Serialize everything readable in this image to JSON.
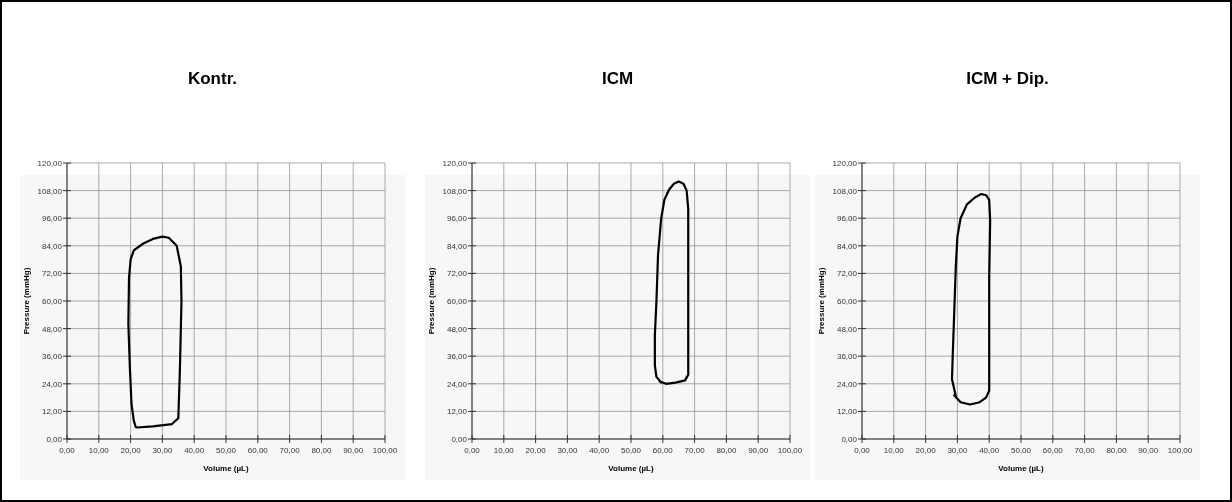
{
  "chart_data": [
    {
      "type": "line",
      "title": "Kontr.",
      "xlabel": "Volume (µL)",
      "ylabel": "Pressure (mmHg)",
      "xlim": [
        0,
        100
      ],
      "ylim": [
        0,
        120
      ],
      "grid": true,
      "xticks": [
        {
          "value": 0,
          "label": "0,00"
        },
        {
          "value": 10,
          "label": "10,00"
        },
        {
          "value": 20,
          "label": "20,00"
        },
        {
          "value": 30,
          "label": "30,00"
        },
        {
          "value": 40,
          "label": "40,00"
        },
        {
          "value": 50,
          "label": "50,00"
        },
        {
          "value": 60,
          "label": "60,00"
        },
        {
          "value": 70,
          "label": "70,00"
        },
        {
          "value": 80,
          "label": "80,00"
        },
        {
          "value": 90,
          "label": "90,00"
        },
        {
          "value": 100,
          "label": "100,00"
        }
      ],
      "yticks": [
        {
          "value": 0,
          "label": "0,00"
        },
        {
          "value": 12,
          "label": "12,00"
        },
        {
          "value": 24,
          "label": "24,00"
        },
        {
          "value": 36,
          "label": "36,00"
        },
        {
          "value": 48,
          "label": "48,00"
        },
        {
          "value": 60,
          "label": "60,00"
        },
        {
          "value": 72,
          "label": "72,00"
        },
        {
          "value": 84,
          "label": "84,00"
        },
        {
          "value": 96,
          "label": "96,00"
        },
        {
          "value": 108,
          "label": "108,00"
        },
        {
          "value": 120,
          "label": "120,00"
        }
      ],
      "series": [
        {
          "color": "#000000",
          "x": [
            22,
            27,
            33,
            35,
            35.5,
            36,
            35.8,
            34.5,
            32,
            30,
            27,
            24,
            21,
            20,
            19.5,
            19.3,
            19.8,
            20.3,
            21,
            21.6
          ],
          "values": [
            5,
            5.5,
            6.5,
            9,
            30,
            60,
            75,
            84,
            87.5,
            88,
            87,
            85,
            82,
            78,
            70,
            50,
            30,
            15,
            8,
            5.2
          ]
        }
      ]
    },
    {
      "type": "line",
      "title": "ICM",
      "xlabel": "Volume (µL)",
      "ylabel": "Pressure (mmHg)",
      "xlim": [
        0,
        100
      ],
      "ylim": [
        0,
        120
      ],
      "grid": true,
      "xticks": [
        {
          "value": 0,
          "label": "0,00"
        },
        {
          "value": 10,
          "label": "10,00"
        },
        {
          "value": 20,
          "label": "20,00"
        },
        {
          "value": 30,
          "label": "30,00"
        },
        {
          "value": 40,
          "label": "40,00"
        },
        {
          "value": 50,
          "label": "50,00"
        },
        {
          "value": 60,
          "label": "60,00"
        },
        {
          "value": 70,
          "label": "70,00"
        },
        {
          "value": 80,
          "label": "80,00"
        },
        {
          "value": 90,
          "label": "90,00"
        },
        {
          "value": 100,
          "label": "100,00"
        }
      ],
      "yticks": [
        {
          "value": 0,
          "label": "0,00"
        },
        {
          "value": 12,
          "label": "12,00"
        },
        {
          "value": 24,
          "label": "24,00"
        },
        {
          "value": 36,
          "label": "36,00"
        },
        {
          "value": 48,
          "label": "48,00"
        },
        {
          "value": 60,
          "label": "60,00"
        },
        {
          "value": 72,
          "label": "72,00"
        },
        {
          "value": 84,
          "label": "84,00"
        },
        {
          "value": 96,
          "label": "96,00"
        },
        {
          "value": 108,
          "label": "108,00"
        },
        {
          "value": 120,
          "label": "120,00"
        }
      ],
      "series": [
        {
          "color": "#000000",
          "x": [
            59,
            61,
            64,
            67,
            68,
            68,
            68,
            68,
            67.5,
            66.5,
            65,
            63.5,
            62,
            60.5,
            59.5,
            58.5,
            58,
            57.5,
            57.5,
            58,
            59.5
          ],
          "values": [
            25,
            24,
            24.5,
            25.5,
            28,
            50,
            80,
            100,
            108,
            111,
            112,
            111,
            108.5,
            104,
            96,
            80,
            60,
            45,
            32,
            27,
            24.6
          ]
        }
      ]
    },
    {
      "type": "line",
      "title": "ICM + Dip.",
      "xlabel": "Volume (µL)",
      "ylabel": "Pressure (mmHg)",
      "xlim": [
        0,
        100
      ],
      "ylim": [
        0,
        120
      ],
      "grid": true,
      "xticks": [
        {
          "value": 0,
          "label": "0,00"
        },
        {
          "value": 10,
          "label": "10,00"
        },
        {
          "value": 20,
          "label": "20,00"
        },
        {
          "value": 30,
          "label": "30,00"
        },
        {
          "value": 40,
          "label": "40,00"
        },
        {
          "value": 50,
          "label": "50,00"
        },
        {
          "value": 60,
          "label": "60,00"
        },
        {
          "value": 70,
          "label": "70,00"
        },
        {
          "value": 80,
          "label": "80,00"
        },
        {
          "value": 90,
          "label": "90,00"
        },
        {
          "value": 100,
          "label": "100,00"
        }
      ],
      "yticks": [
        {
          "value": 0,
          "label": "0,00"
        },
        {
          "value": 12,
          "label": "12,00"
        },
        {
          "value": 24,
          "label": "24,00"
        },
        {
          "value": 36,
          "label": "36,00"
        },
        {
          "value": 48,
          "label": "48,00"
        },
        {
          "value": 60,
          "label": "60,00"
        },
        {
          "value": 72,
          "label": "72,00"
        },
        {
          "value": 84,
          "label": "84,00"
        },
        {
          "value": 96,
          "label": "96,00"
        },
        {
          "value": 108,
          "label": "108,00"
        },
        {
          "value": 120,
          "label": "120,00"
        }
      ],
      "series": [
        {
          "color": "#000000",
          "x": [
            29,
            31,
            34,
            37,
            39,
            40,
            40,
            40,
            40.3,
            40,
            39,
            37.5,
            35.5,
            33,
            31,
            30,
            29.5,
            29,
            28.5,
            28.3,
            29.6
          ],
          "values": [
            19,
            16,
            15,
            16,
            18,
            21,
            40,
            70,
            95,
            104,
            106,
            106.5,
            105,
            102,
            96,
            88,
            75,
            55,
            35,
            26,
            18
          ]
        }
      ]
    }
  ]
}
